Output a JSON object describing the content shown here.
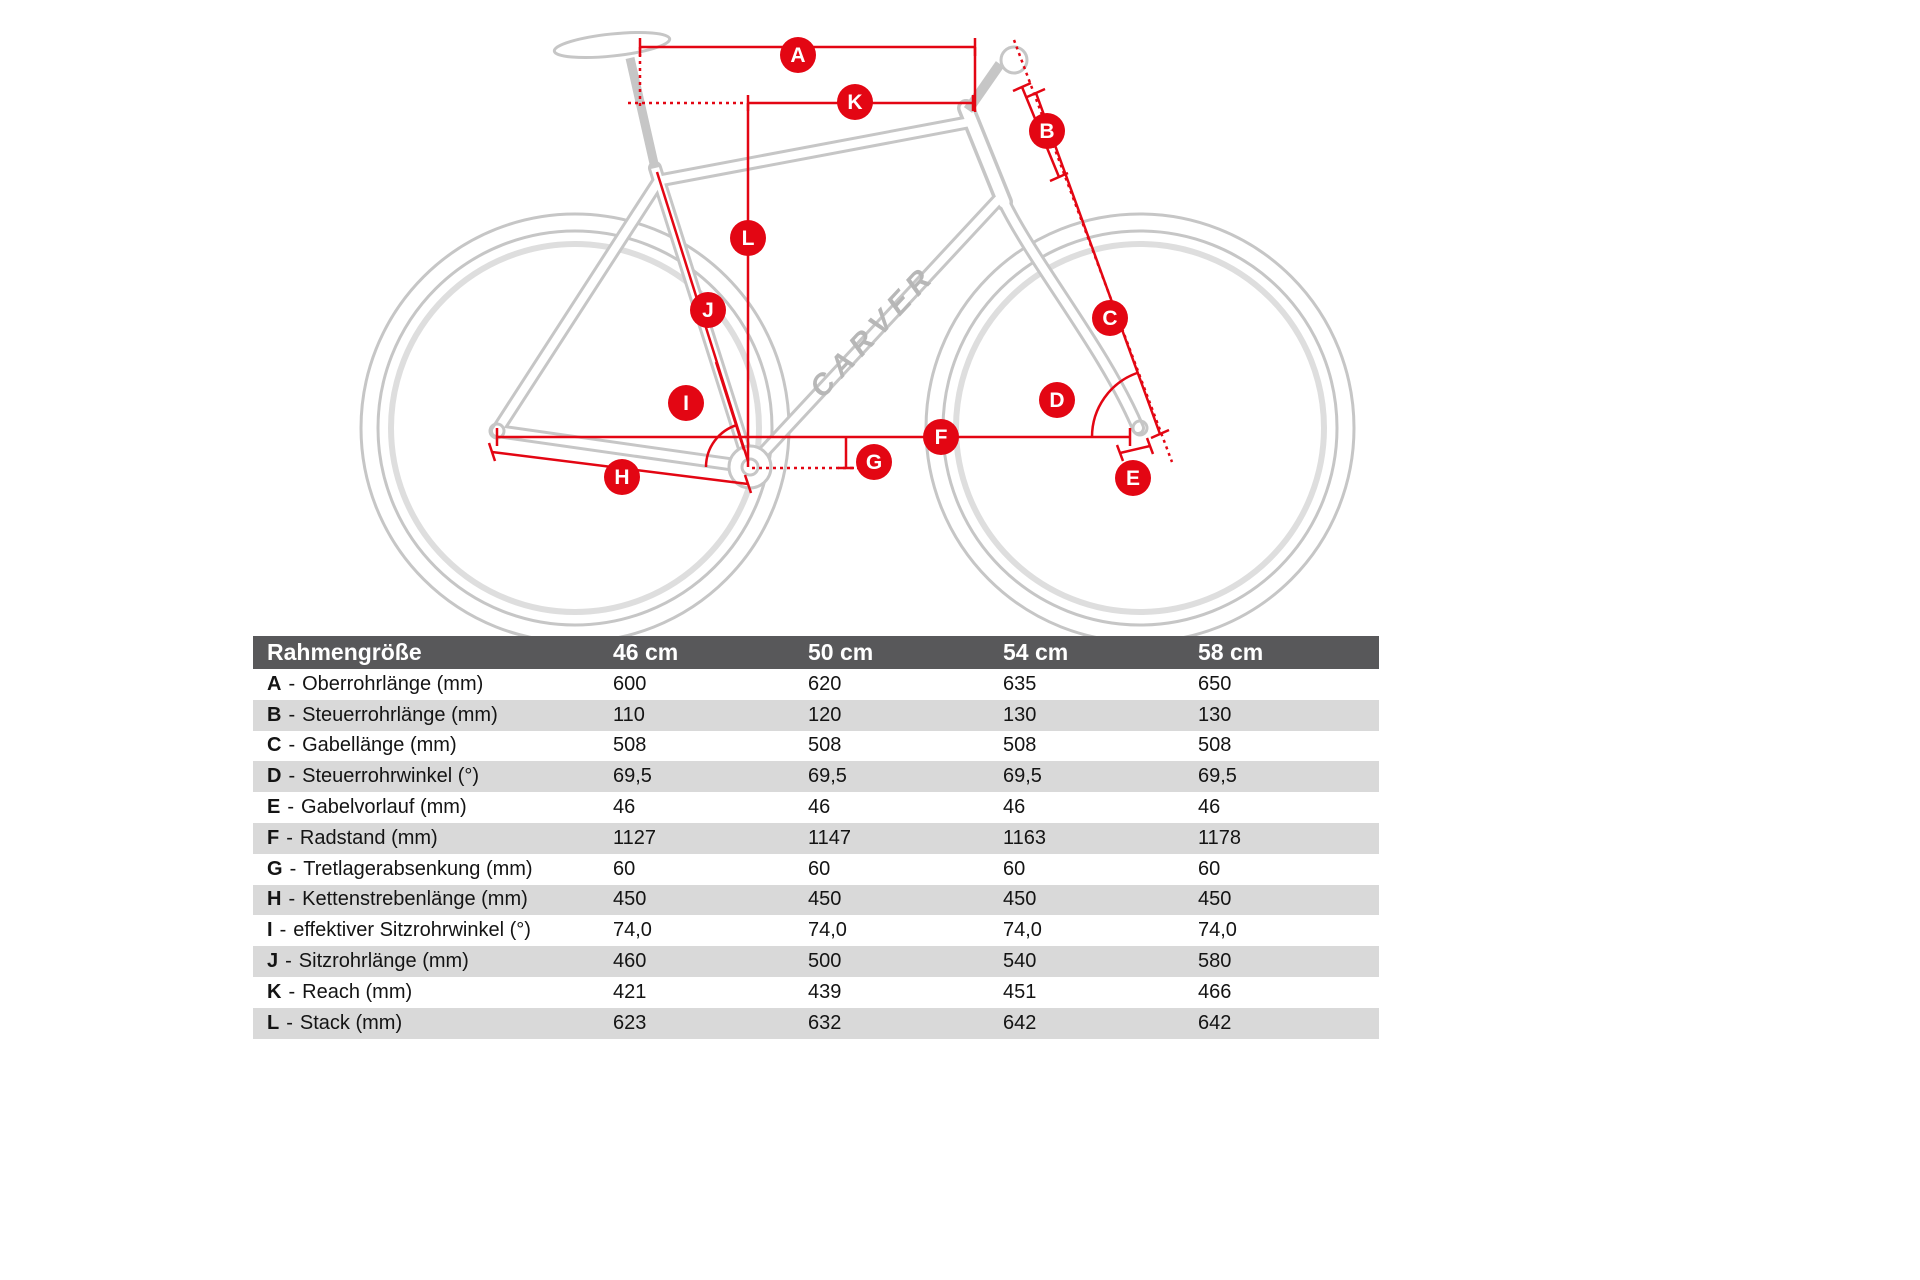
{
  "brand": "CARVER",
  "colors": {
    "accent_red": "#e30613",
    "header_bg": "#58585a",
    "row_alt_bg": "#d9d9d9",
    "bike_gray": "#c6c6c6"
  },
  "diagram": {
    "badges": [
      "A",
      "B",
      "C",
      "D",
      "E",
      "F",
      "G",
      "H",
      "I",
      "J",
      "K",
      "L"
    ]
  },
  "table": {
    "sep": "-",
    "header": {
      "label": "Rahmengröße",
      "sizes": [
        "46 cm",
        "50 cm",
        "54 cm",
        "58 cm"
      ]
    },
    "rows": [
      {
        "letter": "A",
        "label": "Oberrohrlänge (mm)",
        "values": [
          "600",
          "620",
          "635",
          "650"
        ]
      },
      {
        "letter": "B",
        "label": "Steuerrohrlänge (mm)",
        "values": [
          "110",
          "120",
          "130",
          "130"
        ]
      },
      {
        "letter": "C",
        "label": "Gabellänge (mm)",
        "values": [
          "508",
          "508",
          "508",
          "508"
        ]
      },
      {
        "letter": "D",
        "label": "Steuerrohrwinkel (°)",
        "values": [
          "69,5",
          "69,5",
          "69,5",
          "69,5"
        ]
      },
      {
        "letter": "E",
        "label": "Gabelvorlauf (mm)",
        "values": [
          "46",
          "46",
          "46",
          "46"
        ]
      },
      {
        "letter": "F",
        "label": "Radstand (mm)",
        "values": [
          "1127",
          "1147",
          "1163",
          "1178"
        ]
      },
      {
        "letter": "G",
        "label": "Tretlagerabsenkung (mm)",
        "values": [
          "60",
          "60",
          "60",
          "60"
        ]
      },
      {
        "letter": "H",
        "label": "Kettenstrebenlänge (mm)",
        "values": [
          "450",
          "450",
          "450",
          "450"
        ]
      },
      {
        "letter": "I",
        "label": "effektiver Sitzrohrwinkel (°)",
        "values": [
          "74,0",
          "74,0",
          "74,0",
          "74,0"
        ]
      },
      {
        "letter": "J",
        "label": "Sitzrohrlänge (mm)",
        "values": [
          "460",
          "500",
          "540",
          "580"
        ]
      },
      {
        "letter": "K",
        "label": "Reach (mm)",
        "values": [
          "421",
          "439",
          "451",
          "466"
        ]
      },
      {
        "letter": "L",
        "label": "Stack (mm)",
        "values": [
          "623",
          "632",
          "642",
          "642"
        ]
      }
    ]
  }
}
